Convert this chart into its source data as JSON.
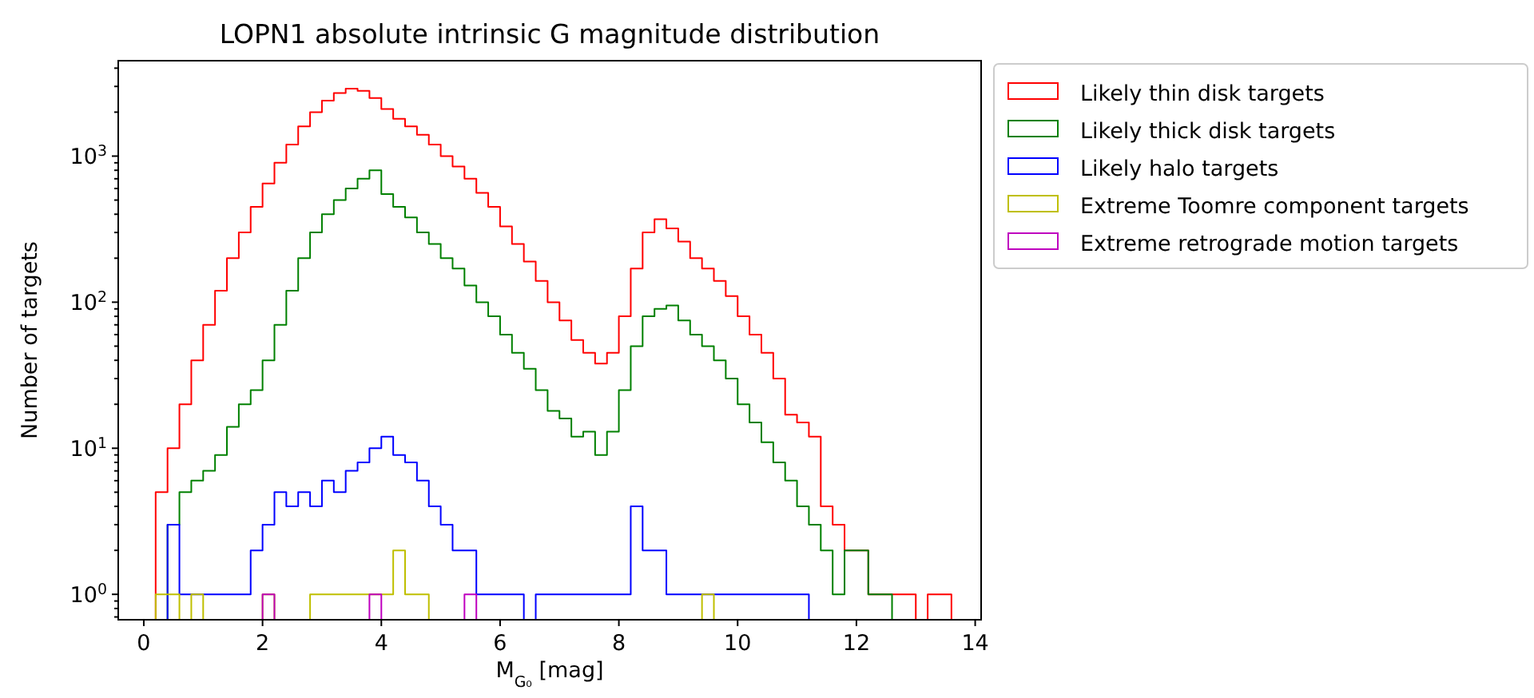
{
  "chart_data": {
    "type": "histogram",
    "title": "LOPN1 absolute intrinsic G magnitude distribution",
    "xlabel": "M$_{G₀}$ [mag]",
    "ylabel": "Number of targets",
    "log": "y",
    "legend": "right",
    "grid": false,
    "bins": [
      0.2,
      0.4,
      0.6,
      0.8,
      1.0,
      1.2,
      1.4,
      1.6,
      1.8,
      2.0,
      2.2,
      2.4,
      2.6,
      2.8,
      3.0,
      3.2,
      3.4,
      3.6,
      3.8,
      4.0,
      4.2,
      4.4,
      4.6,
      4.8,
      5.0,
      5.2,
      5.4,
      5.6,
      5.8,
      6.0,
      6.2,
      6.4,
      6.6,
      6.8,
      7.0,
      7.2,
      7.4,
      7.6,
      7.8,
      8.0,
      8.2,
      8.4,
      8.6,
      8.8,
      9.0,
      9.2,
      9.4,
      9.6,
      9.8,
      10.0,
      10.2,
      10.4,
      10.6,
      10.8,
      11.0,
      11.2,
      11.4,
      11.6,
      11.8,
      12.0,
      12.2,
      12.4,
      12.6,
      12.8,
      13.0,
      13.2,
      13.4,
      13.6,
      13.8
    ],
    "xlim": [
      -0.43,
      14.1
    ],
    "xticks": [
      0,
      2,
      4,
      6,
      8,
      10,
      12,
      14
    ],
    "ylim": [
      0.67,
      4500
    ],
    "yticks": [
      {
        "value": 1,
        "label": "10$^{0}$"
      },
      {
        "value": 10,
        "label": "10$^{1}$"
      },
      {
        "value": 100,
        "label": "10$^{2}$"
      },
      {
        "value": 1000,
        "label": "10$^{3}$"
      },
      {
        "value": 0.7,
        "label": null
      },
      {
        "value": 0.8,
        "label": null
      },
      {
        "value": 0.9,
        "label": null
      },
      {
        "value": 2,
        "label": null
      },
      {
        "value": 3,
        "label": null
      },
      {
        "value": 4,
        "label": null
      },
      {
        "value": 5,
        "label": null
      },
      {
        "value": 6,
        "label": null
      },
      {
        "value": 7,
        "label": null
      },
      {
        "value": 8,
        "label": null
      },
      {
        "value": 9,
        "label": null
      },
      {
        "value": 20,
        "label": null
      },
      {
        "value": 30,
        "label": null
      },
      {
        "value": 40,
        "label": null
      },
      {
        "value": 50,
        "label": null
      },
      {
        "value": 60,
        "label": null
      },
      {
        "value": 70,
        "label": null
      },
      {
        "value": 80,
        "label": null
      },
      {
        "value": 90,
        "label": null
      },
      {
        "value": 200,
        "label": null
      },
      {
        "value": 300,
        "label": null
      },
      {
        "value": 400,
        "label": null
      },
      {
        "value": 500,
        "label": null
      },
      {
        "value": 600,
        "label": null
      },
      {
        "value": 700,
        "label": null
      },
      {
        "value": 800,
        "label": null
      },
      {
        "value": 900,
        "label": null
      },
      {
        "value": 2000,
        "label": null
      },
      {
        "value": 3000,
        "label": null
      },
      {
        "value": 4000,
        "label": null
      }
    ],
    "series": [
      {
        "name": "Likely thin disk targets",
        "color": "#ff0000",
        "values": [
          5,
          10,
          20,
          40,
          70,
          120,
          200,
          300,
          450,
          650,
          900,
          1200,
          1600,
          2000,
          2400,
          2700,
          2900,
          2800,
          2500,
          2100,
          1800,
          1600,
          1400,
          1200,
          1000,
          850,
          700,
          560,
          450,
          330,
          250,
          190,
          140,
          100,
          75,
          55,
          45,
          38,
          45,
          80,
          170,
          300,
          370,
          320,
          260,
          200,
          170,
          140,
          110,
          80,
          60,
          45,
          30,
          17,
          15,
          12,
          4,
          3,
          2,
          2,
          1,
          1,
          1,
          1,
          null,
          1,
          1,
          null
        ]
      },
      {
        "name": "Likely thick disk targets",
        "color": "#008000",
        "values": [
          null,
          3,
          5,
          6,
          7,
          9,
          14,
          20,
          25,
          40,
          70,
          120,
          200,
          300,
          400,
          500,
          600,
          700,
          800,
          550,
          450,
          380,
          300,
          250,
          200,
          170,
          130,
          100,
          80,
          60,
          45,
          35,
          25,
          18,
          16,
          12,
          13,
          9,
          13,
          25,
          50,
          80,
          90,
          95,
          75,
          60,
          50,
          40,
          30,
          20,
          15,
          11,
          8,
          6,
          4,
          3,
          2,
          1,
          2,
          2,
          1,
          1,
          null,
          null,
          null,
          null,
          null,
          null
        ]
      },
      {
        "name": "Likely halo targets",
        "color": "#0000ff",
        "values": [
          null,
          3,
          1,
          1,
          1,
          1,
          1,
          1,
          2,
          3,
          5,
          4,
          5,
          4,
          6,
          5,
          7,
          8,
          10,
          12,
          9,
          8,
          6,
          4,
          3,
          2,
          2,
          1,
          1,
          1,
          1,
          null,
          1,
          1,
          1,
          1,
          1,
          1,
          1,
          1,
          4,
          2,
          2,
          1,
          1,
          1,
          1,
          1,
          1,
          1,
          1,
          1,
          1,
          1,
          1,
          null,
          null,
          null,
          null,
          null,
          null,
          null,
          null,
          null,
          null,
          null,
          null,
          null
        ]
      },
      {
        "name": "Extreme Toomre component targets",
        "color": "#bfbf00",
        "values": [
          1,
          1,
          null,
          1,
          null,
          null,
          null,
          null,
          null,
          1,
          null,
          null,
          null,
          1,
          1,
          1,
          1,
          1,
          1,
          1,
          2,
          1,
          1,
          null,
          null,
          null,
          null,
          null,
          null,
          null,
          null,
          null,
          null,
          null,
          null,
          null,
          null,
          null,
          null,
          null,
          null,
          null,
          null,
          null,
          null,
          null,
          1,
          null,
          null,
          null,
          null,
          null,
          null,
          null,
          null,
          null,
          null,
          null,
          null,
          null,
          null,
          null,
          null,
          null,
          null,
          null,
          null,
          null
        ]
      },
      {
        "name": "Extreme retrograde motion targets",
        "color": "#bf00bf",
        "values": [
          null,
          null,
          null,
          null,
          null,
          null,
          null,
          null,
          null,
          1,
          null,
          null,
          null,
          null,
          null,
          null,
          null,
          null,
          1,
          null,
          null,
          null,
          null,
          null,
          null,
          null,
          1,
          null,
          null,
          null,
          null,
          null,
          null,
          null,
          null,
          null,
          null,
          null,
          null,
          null,
          null,
          null,
          null,
          null,
          null,
          null,
          null,
          null,
          null,
          null,
          null,
          null,
          null,
          null,
          null,
          null,
          null,
          null,
          null,
          null,
          null,
          null,
          null,
          null,
          null,
          null,
          null,
          null
        ]
      }
    ]
  }
}
